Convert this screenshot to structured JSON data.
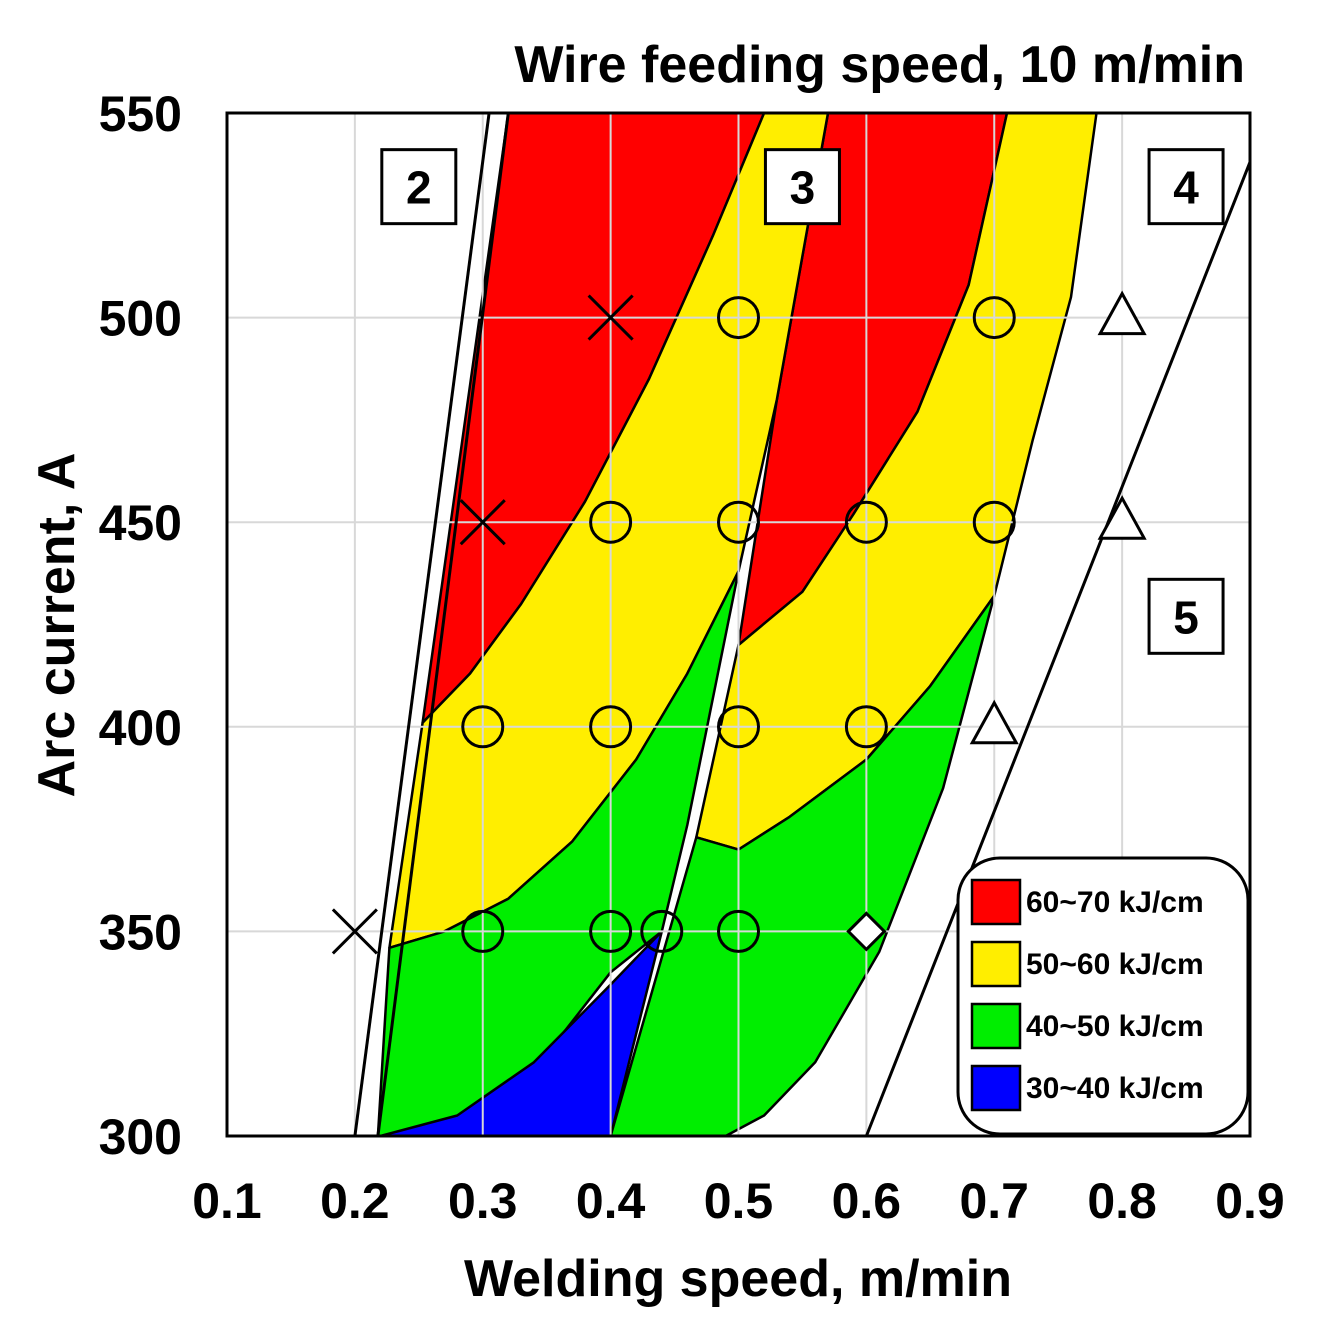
{
  "chart_data": {
    "type": "scatter",
    "title": "Wire feeding speed, 10 m/min",
    "xlabel": "Welding speed, m/min",
    "ylabel": "Arc current, A",
    "xlim": [
      0.1,
      0.9
    ],
    "ylim": [
      300,
      550
    ],
    "xticks": [
      "0.1",
      "0.2",
      "0.3",
      "0.4",
      "0.5",
      "0.6",
      "0.7",
      "0.8",
      "0.9"
    ],
    "yticks": [
      "300",
      "350",
      "400",
      "450",
      "500",
      "550"
    ],
    "grid": true,
    "region_labels": [
      {
        "label": "2",
        "x": 0.25,
        "y": 532
      },
      {
        "label": "3",
        "x": 0.55,
        "y": 532
      },
      {
        "label": "4",
        "x": 0.85,
        "y": 532
      },
      {
        "label": "5",
        "x": 0.85,
        "y": 427
      }
    ],
    "boundary_lines": [
      {
        "name": "left-boundary-outer",
        "points": [
          [
            0.2,
            300
          ],
          [
            0.305,
            550
          ]
        ]
      },
      {
        "name": "left-boundary-inner",
        "points": [
          [
            0.218,
            300
          ],
          [
            0.32,
            550
          ]
        ]
      },
      {
        "name": "right-boundary",
        "points": [
          [
            0.6,
            300
          ],
          [
            0.9,
            538
          ]
        ]
      }
    ],
    "zones": [
      {
        "label": "60~70 kJ/cm",
        "color": "#ff0000",
        "points": [
          [
            0.253,
            401
          ],
          [
            0.32,
            550
          ],
          [
            0.52,
            550
          ],
          [
            0.48,
            520
          ],
          [
            0.43,
            485
          ],
          [
            0.38,
            455
          ],
          [
            0.33,
            430
          ],
          [
            0.29,
            413
          ]
        ]
      },
      {
        "label": "60~70 kJ/cm",
        "color": "#ff0000",
        "points": [
          [
            0.5,
            420
          ],
          [
            0.53,
            480
          ],
          [
            0.55,
            515
          ],
          [
            0.57,
            550
          ],
          [
            0.71,
            550
          ],
          [
            0.68,
            508
          ],
          [
            0.64,
            477
          ],
          [
            0.59,
            452
          ],
          [
            0.55,
            433
          ]
        ]
      },
      {
        "label": "50~60 kJ/cm",
        "color": "#ffee00",
        "points": [
          [
            0.227,
            346
          ],
          [
            0.253,
            401
          ],
          [
            0.29,
            413
          ],
          [
            0.33,
            430
          ],
          [
            0.38,
            455
          ],
          [
            0.43,
            485
          ],
          [
            0.48,
            520
          ],
          [
            0.52,
            550
          ],
          [
            0.57,
            550
          ],
          [
            0.55,
            515
          ],
          [
            0.53,
            480
          ],
          [
            0.5,
            438
          ],
          [
            0.46,
            413
          ],
          [
            0.42,
            392
          ],
          [
            0.37,
            372
          ],
          [
            0.32,
            358
          ],
          [
            0.27,
            350
          ]
        ]
      },
      {
        "label": "50~60 kJ/cm",
        "color": "#ffee00",
        "points": [
          [
            0.467,
            373
          ],
          [
            0.5,
            420
          ],
          [
            0.55,
            433
          ],
          [
            0.59,
            452
          ],
          [
            0.64,
            477
          ],
          [
            0.68,
            508
          ],
          [
            0.71,
            550
          ],
          [
            0.78,
            550
          ],
          [
            0.76,
            505
          ],
          [
            0.73,
            470
          ],
          [
            0.7,
            432
          ],
          [
            0.65,
            410
          ],
          [
            0.6,
            392
          ],
          [
            0.54,
            378
          ],
          [
            0.5,
            370
          ]
        ]
      },
      {
        "label": "40~50 kJ/cm",
        "color": "#00ee00",
        "points": [
          [
            0.218,
            300
          ],
          [
            0.227,
            346
          ],
          [
            0.27,
            350
          ],
          [
            0.32,
            358
          ],
          [
            0.37,
            372
          ],
          [
            0.42,
            392
          ],
          [
            0.46,
            413
          ],
          [
            0.5,
            438
          ],
          [
            0.46,
            376
          ],
          [
            0.44,
            350
          ],
          [
            0.4,
            340
          ],
          [
            0.35,
            320
          ],
          [
            0.3,
            300
          ]
        ]
      },
      {
        "label": "40~50 kJ/cm",
        "color": "#00ee00",
        "points": [
          [
            0.4,
            300
          ],
          [
            0.467,
            373
          ],
          [
            0.5,
            370
          ],
          [
            0.54,
            378
          ],
          [
            0.6,
            392
          ],
          [
            0.65,
            410
          ],
          [
            0.7,
            432
          ],
          [
            0.66,
            385
          ],
          [
            0.61,
            345
          ],
          [
            0.56,
            318
          ],
          [
            0.52,
            305
          ],
          [
            0.49,
            300
          ]
        ]
      },
      {
        "label": "30~40 kJ/cm",
        "color": "#0000ff",
        "points": [
          [
            0.22,
            300
          ],
          [
            0.4,
            300
          ],
          [
            0.44,
            350
          ],
          [
            0.4,
            337
          ],
          [
            0.34,
            318
          ],
          [
            0.28,
            305
          ]
        ]
      }
    ],
    "markers": [
      {
        "symbol": "cross",
        "x": 0.2,
        "y": 350
      },
      {
        "symbol": "cross",
        "x": 0.3,
        "y": 450
      },
      {
        "symbol": "cross",
        "x": 0.4,
        "y": 500
      },
      {
        "symbol": "circle",
        "x": 0.3,
        "y": 400
      },
      {
        "symbol": "circle",
        "x": 0.3,
        "y": 350
      },
      {
        "symbol": "circle",
        "x": 0.4,
        "y": 450
      },
      {
        "symbol": "circle",
        "x": 0.4,
        "y": 400
      },
      {
        "symbol": "circle",
        "x": 0.4,
        "y": 350
      },
      {
        "symbol": "circle",
        "x": 0.44,
        "y": 350
      },
      {
        "symbol": "circle",
        "x": 0.5,
        "y": 500
      },
      {
        "symbol": "circle",
        "x": 0.5,
        "y": 450
      },
      {
        "symbol": "circle",
        "x": 0.5,
        "y": 400
      },
      {
        "symbol": "circle",
        "x": 0.5,
        "y": 350
      },
      {
        "symbol": "circle",
        "x": 0.6,
        "y": 450
      },
      {
        "symbol": "circle",
        "x": 0.6,
        "y": 400
      },
      {
        "symbol": "circle",
        "x": 0.7,
        "y": 500
      },
      {
        "symbol": "circle",
        "x": 0.7,
        "y": 450
      },
      {
        "symbol": "diamond",
        "x": 0.6,
        "y": 350
      },
      {
        "symbol": "triangle",
        "x": 0.7,
        "y": 400
      },
      {
        "symbol": "triangle",
        "x": 0.8,
        "y": 450
      },
      {
        "symbol": "triangle",
        "x": 0.8,
        "y": 500
      }
    ],
    "legend": {
      "position": "bottom-right",
      "entries": [
        {
          "label": "60~70 kJ/cm",
          "color": "#ff0000"
        },
        {
          "label": "50~60 kJ/cm",
          "color": "#ffee00"
        },
        {
          "label": "40~50 kJ/cm",
          "color": "#00ee00"
        },
        {
          "label": "30~40 kJ/cm",
          "color": "#0000ff"
        }
      ]
    }
  }
}
